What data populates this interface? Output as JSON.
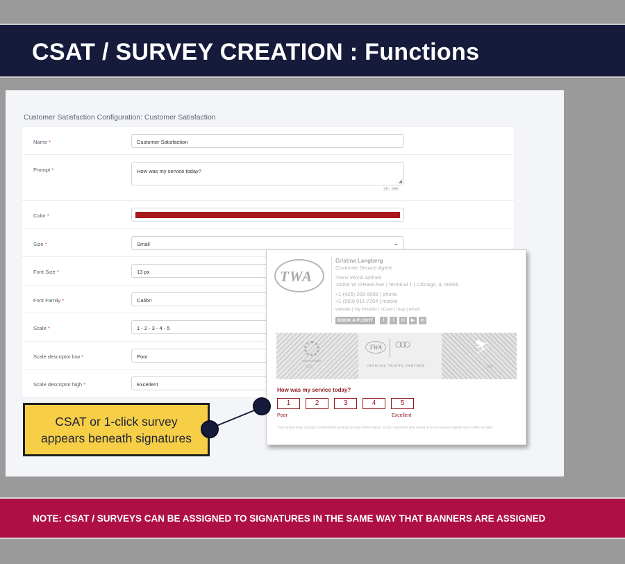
{
  "title": "CSAT / SURVEY CREATION : Functions",
  "config": {
    "heading": "Customer Satisfaction Configuration: Customer Satisfaction",
    "fields": [
      {
        "label": "Name",
        "value": "Customer Satisfaction"
      },
      {
        "label": "Prompt",
        "value": "How was my service today?",
        "counter": "25 / 255"
      },
      {
        "label": "Color",
        "value": "#a8171d"
      },
      {
        "label": "Size",
        "value": "Small"
      },
      {
        "label": "Font Size",
        "value": "13 px"
      },
      {
        "label": "Font Family",
        "value": "Calibri"
      },
      {
        "label": "Scale",
        "value": "1 - 2 - 3 - 4 - 5"
      },
      {
        "label": "Scale descriptor low",
        "value": "Poor"
      },
      {
        "label": "Scale descriptor high",
        "value": "Excellent"
      }
    ],
    "required_mark": "*"
  },
  "email": {
    "logo_text": "TWA",
    "name": "Cristina Langberg",
    "role": "Customer Service Agent",
    "company": "Trans World Airlines",
    "address": "10000 W O'Hare Ave  |  Terminal 1  |  Chicago, IL 60666",
    "phone": "+1 (425) 208-5088  |  phone",
    "mobile": "+1 (693) 011-7204  |  mobile",
    "links": "website  |  my linkedin  |  vCard  |  map  |  email",
    "book_button": "BOOK A FLIGHT",
    "social_icons": [
      "facebook-icon",
      "twitter-icon",
      "instagram-icon",
      "youtube-icon",
      "linkedin-icon"
    ],
    "banner": {
      "tokyo": "TOKYO 2020",
      "twa": "TWA",
      "partner": "OFFICIAL TRAVEL PARTNER"
    },
    "survey": {
      "question": "How was my service today?",
      "scale": [
        "1",
        "2",
        "3",
        "4",
        "5"
      ],
      "low": "Poor",
      "high": "Excellent",
      "color": "#8e1a1f"
    },
    "disclaimer": "This email may contain confidential and/or private information. If you received this email in error please delete and notify sender."
  },
  "callout": {
    "line1": "CSAT or 1-click survey",
    "line2": "appears beneath signatures"
  },
  "note": "NOTE: CSAT / SURVEYS CAN BE ASSIGNED TO SIGNATURES IN THE SAME WAY THAT BANNERS ARE ASSIGNED"
}
